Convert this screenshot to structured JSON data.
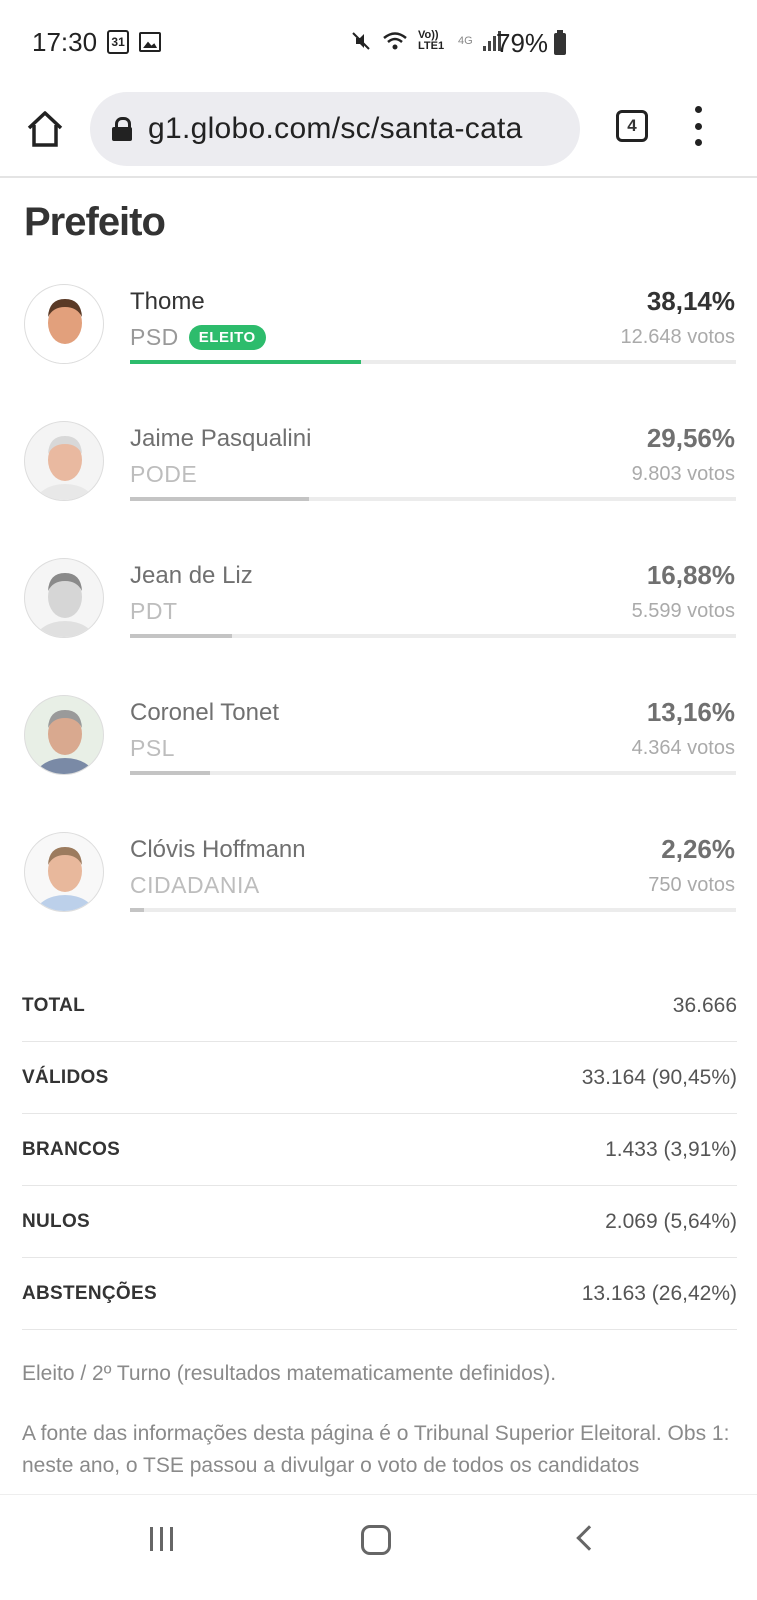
{
  "status_bar": {
    "time": "17:30",
    "calendar_day": "31",
    "network_label": "Vo)) LTE1",
    "network_type": "4G",
    "battery": "79%"
  },
  "browser": {
    "url": "g1.globo.com/sc/santa-cata",
    "tab_count": "4"
  },
  "section_title": "Prefeito",
  "candidates": [
    {
      "name": "Thome",
      "party": "PSD",
      "badge": "ELEITO",
      "percent": "38,14%",
      "votes": "12.648 votos",
      "share": 38.14,
      "winner": true
    },
    {
      "name": "Jaime Pasqualini",
      "party": "PODE",
      "percent": "29,56%",
      "votes": "9.803 votos",
      "share": 29.56
    },
    {
      "name": "Jean de Liz",
      "party": "PDT",
      "percent": "16,88%",
      "votes": "5.599 votos",
      "share": 16.88
    },
    {
      "name": "Coronel Tonet",
      "party": "PSL",
      "percent": "13,16%",
      "votes": "4.364 votos",
      "share": 13.16
    },
    {
      "name": "Clóvis Hoffmann",
      "party": "CIDADANIA",
      "percent": "2,26%",
      "votes": "750 votos",
      "share": 2.26
    }
  ],
  "summary": [
    {
      "label": "TOTAL",
      "value": "36.666"
    },
    {
      "label": "VÁLIDOS",
      "value": "33.164 (90,45%)"
    },
    {
      "label": "BRANCOS",
      "value": "1.433 (3,91%)"
    },
    {
      "label": "NULOS",
      "value": "2.069 (5,64%)"
    },
    {
      "label": "ABSTENÇÕES",
      "value": "13.163 (26,42%)"
    }
  ],
  "notes": {
    "legend": "Eleito / 2º Turno (resultados matematicamente definidos).",
    "source": "A fonte das informações desta página é o Tribunal Superior Eleitoral. Obs 1: neste ano, o TSE passou a divulgar o voto de todos os candidatos concorrentes, independentemente da situação do seu"
  },
  "colors": {
    "winner_bar": "#2dbc6c",
    "bar": "#c4c4c4"
  }
}
